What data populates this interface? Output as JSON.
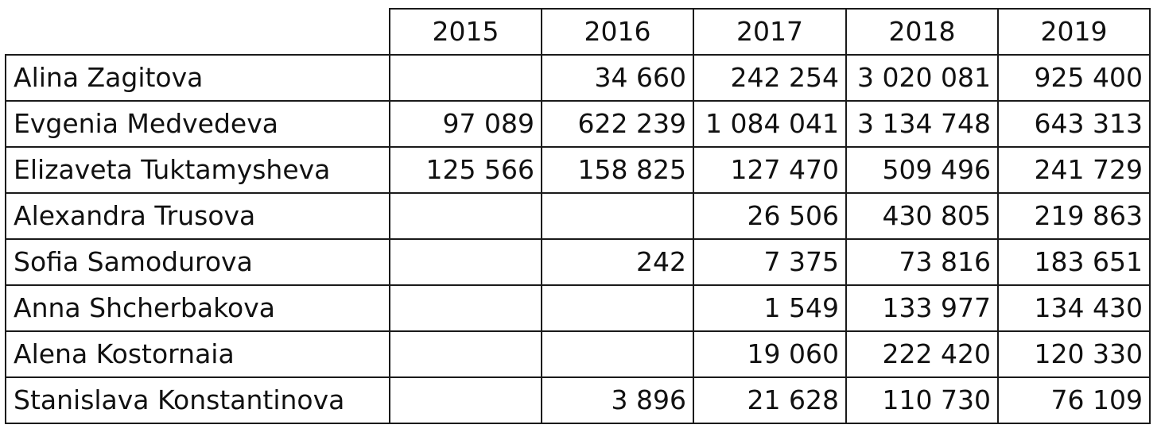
{
  "table": {
    "columns": [
      "2015",
      "2016",
      "2017",
      "2018",
      "2019"
    ],
    "rows": [
      {
        "name": "Alina Zagitova",
        "values": [
          "",
          "34 660",
          "242 254",
          "3 020 081",
          "925 400"
        ]
      },
      {
        "name": "Evgenia Medvedeva",
        "values": [
          "97 089",
          "622 239",
          "1 084 041",
          "3 134 748",
          "643 313"
        ]
      },
      {
        "name": "Elizaveta Tuktamysheva",
        "values": [
          "125 566",
          "158 825",
          "127 470",
          "509 496",
          "241 729"
        ]
      },
      {
        "name": "Alexandra Trusova",
        "values": [
          "",
          "",
          "26 506",
          "430 805",
          "219 863"
        ]
      },
      {
        "name": "Sofia Samodurova",
        "values": [
          "",
          "242",
          "7 375",
          "73 816",
          "183 651"
        ]
      },
      {
        "name": "Anna Shcherbakova",
        "values": [
          "",
          "",
          "1 549",
          "133 977",
          "134 430"
        ]
      },
      {
        "name": "Alena Kostornaia",
        "values": [
          "",
          "",
          "19 060",
          "222 420",
          "120 330"
        ]
      },
      {
        "name": "Stanislava Konstantinova",
        "values": [
          "",
          "3 896",
          "21 628",
          "110 730",
          "76 109"
        ]
      }
    ]
  }
}
